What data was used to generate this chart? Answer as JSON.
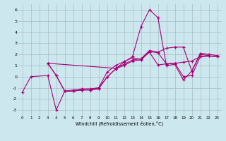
{
  "xlabel": "Windchill (Refroidissement éolien,°C)",
  "xlim": [
    -0.5,
    23.5
  ],
  "ylim": [
    -3.5,
    6.5
  ],
  "xticks": [
    0,
    1,
    2,
    3,
    4,
    5,
    6,
    7,
    8,
    9,
    10,
    11,
    12,
    13,
    14,
    15,
    16,
    17,
    18,
    19,
    20,
    21,
    22,
    23
  ],
  "yticks": [
    -3,
    -2,
    -1,
    0,
    1,
    2,
    3,
    4,
    5,
    6
  ],
  "bg_color": "#cce8ee",
  "line_color": "#aa0077",
  "grid_color": "#aabbc8",
  "line1_x": [
    0,
    1,
    3,
    4,
    5,
    6,
    7,
    8,
    9,
    10,
    11,
    12,
    13,
    14,
    15,
    16,
    17,
    18,
    19,
    20,
    21,
    22
  ],
  "line1_y": [
    -1.4,
    0.0,
    0.1,
    -3.0,
    -1.3,
    -1.3,
    -1.2,
    -1.2,
    -1.0,
    -0.05,
    0.7,
    1.3,
    1.8,
    4.5,
    6.0,
    5.3,
    1.0,
    1.1,
    -0.3,
    0.5,
    2.0,
    1.9
  ],
  "line2_x": [
    3,
    4,
    5,
    6,
    7,
    8,
    9,
    10,
    11,
    12,
    13,
    14,
    15,
    16,
    17,
    18,
    19,
    20,
    21,
    22,
    23
  ],
  "line2_y": [
    1.2,
    0.1,
    -1.3,
    -1.3,
    -1.2,
    -1.2,
    -1.1,
    -0.05,
    0.7,
    1.0,
    1.4,
    1.5,
    2.2,
    1.05,
    1.15,
    1.2,
    0.0,
    0.1,
    1.8,
    1.85,
    1.8
  ],
  "line3_x": [
    3,
    4,
    5,
    6,
    7,
    8,
    9,
    10,
    11,
    12,
    13,
    14,
    15,
    16,
    17,
    18,
    19,
    20,
    21,
    22,
    23
  ],
  "line3_y": [
    1.2,
    0.1,
    -1.3,
    -1.2,
    -1.1,
    -1.1,
    -1.0,
    0.4,
    1.0,
    1.35,
    1.7,
    1.55,
    2.25,
    2.15,
    1.15,
    1.2,
    1.3,
    1.4,
    1.8,
    1.85,
    1.8
  ],
  "line4_x": [
    3,
    11,
    12,
    13,
    14,
    15,
    16,
    17,
    18,
    19,
    20,
    21,
    22,
    23
  ],
  "line4_y": [
    1.2,
    0.75,
    1.1,
    1.5,
    1.6,
    2.35,
    2.2,
    2.55,
    2.65,
    2.65,
    0.5,
    2.1,
    2.0,
    1.9
  ]
}
